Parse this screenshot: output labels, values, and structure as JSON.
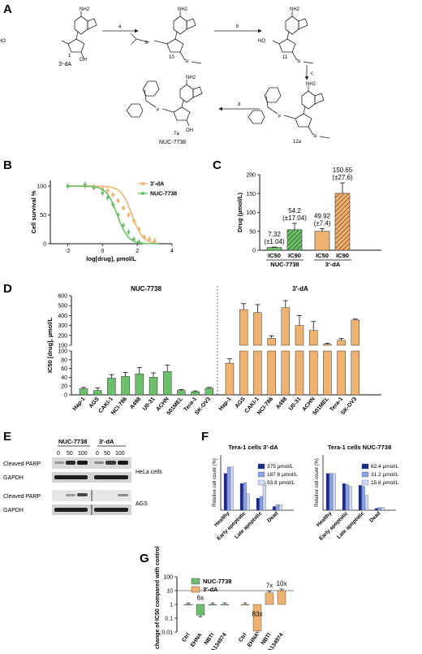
{
  "panels": {
    "a": {
      "letter": "A",
      "compounds": [
        {
          "id": "1",
          "name": "3′-dA"
        },
        {
          "id": "10",
          "name": ""
        },
        {
          "id": "11",
          "name": ""
        },
        {
          "id": "12a",
          "name": ""
        },
        {
          "id": "7a",
          "name": "NUC-7738"
        }
      ],
      "steps": [
        "a",
        "b",
        "c",
        "d"
      ],
      "atoms": {
        "nh2": "NH2",
        "n": "N",
        "ho": "HO",
        "oh": "OH",
        "o": "O",
        "si": "Si",
        "p": "P",
        "h": "H"
      }
    },
    "b": {
      "letter": "B"
    },
    "c": {
      "letter": "C"
    },
    "d": {
      "letter": "D"
    },
    "e": {
      "letter": "E"
    },
    "f": {
      "letter": "F"
    },
    "g": {
      "letter": "G"
    }
  },
  "chart_data": [
    {
      "panel": "B",
      "type": "line",
      "xlabel": "log[drug], µmol/L",
      "ylabel": "Cell survival %",
      "xlim": [
        -3,
        4
      ],
      "ylim": [
        0,
        110
      ],
      "xticks": [
        -2,
        0,
        2,
        4
      ],
      "yticks": [
        0,
        50,
        100
      ],
      "series": [
        {
          "name": "3′-dA",
          "color": "#f0b270",
          "ic50_log": 1.7,
          "x": [
            -2,
            -1,
            -0.5,
            0,
            0.3,
            0.6,
            0.9,
            1.2,
            1.5,
            1.8,
            2.1,
            2.4,
            2.7,
            3.0
          ],
          "y": [
            100,
            100,
            97,
            95,
            92,
            85,
            75,
            62,
            50,
            40,
            25,
            12,
            8,
            5
          ]
        },
        {
          "name": "NUC-7738",
          "color": "#6cc06c",
          "ic50_log": 0.85,
          "x": [
            -2,
            -1,
            -0.5,
            0,
            0.3,
            0.6,
            0.9,
            1.2,
            1.5,
            1.8,
            2.1
          ],
          "y": [
            100,
            103,
            98,
            88,
            80,
            68,
            50,
            32,
            20,
            8,
            3
          ]
        }
      ]
    },
    {
      "panel": "C",
      "type": "bar",
      "ylabel": "Drug (µmol/L)",
      "ylim": [
        0,
        200
      ],
      "yticks": [
        0,
        50,
        100,
        150,
        200
      ],
      "groups": [
        "NUC-7738",
        "3′-dA"
      ],
      "bars": [
        {
          "group": "NUC-7738",
          "label": "IC50",
          "value": 7.32,
          "sd": 1.04,
          "text": "7.32",
          "text2": "(±1.04)",
          "color": "#6cc06c",
          "hatched": false
        },
        {
          "group": "NUC-7738",
          "label": "IC90",
          "value": 54.2,
          "sd": 17.04,
          "text": "54.2",
          "text2": "(±17.04)",
          "color": "#6cc06c",
          "hatched": true
        },
        {
          "group": "3′-dA",
          "label": "IC50",
          "value": 49.92,
          "sd": 7.4,
          "text": "49.92",
          "text2": "(±7.4)",
          "color": "#f0b270",
          "hatched": false
        },
        {
          "group": "3′-dA",
          "label": "IC90",
          "value": 150.65,
          "sd": 27.6,
          "text": "150.65",
          "text2": "(±27.6)",
          "color": "#f0b270",
          "hatched": true
        }
      ]
    },
    {
      "panel": "D",
      "type": "bar",
      "ylabel": "IC50 [drug], µmol/L",
      "groups": [
        "NUC-7738",
        "3′-dA"
      ],
      "axis_lower": {
        "ylim": [
          0,
          100
        ],
        "yticks": [
          0,
          20,
          40,
          60,
          80,
          100
        ]
      },
      "axis_upper": {
        "ylim": [
          100,
          600
        ],
        "yticks": [
          100,
          200,
          300,
          400,
          500,
          600
        ]
      },
      "categories": [
        "Hap-1",
        "AGS",
        "CAKI-1",
        "NCI-786",
        "A498",
        "U0-31",
        "ACHN",
        "501MEL",
        "Tera-1",
        "SK-OV3"
      ],
      "series": [
        {
          "name": "NUC-7738",
          "color": "#6cc06c",
          "values": [
            14,
            10,
            38,
            42,
            48,
            40,
            53,
            10,
            7,
            15
          ],
          "sd": [
            3,
            6,
            8,
            9,
            14,
            10,
            15,
            2,
            2,
            2
          ]
        },
        {
          "name": "3′-dA",
          "color": "#f0b270",
          "values": [
            72,
            460,
            430,
            170,
            480,
            300,
            250,
            110,
            150,
            355
          ],
          "sd": [
            10,
            60,
            80,
            25,
            70,
            100,
            90,
            10,
            20,
            10
          ]
        }
      ]
    },
    {
      "panel": "F",
      "type": "bar",
      "title": "Tera-1 cells 3′-dA",
      "ylabel": "Relative cell count (%)",
      "categories": [
        "Healthy",
        "Early apoptotic",
        "Late apoptotic",
        "Dead"
      ],
      "ylim": [
        0,
        60
      ],
      "series": [
        {
          "name": "375 µmol/L",
          "color": "#1c2a8c",
          "values": [
            40,
            29,
            13,
            4
          ]
        },
        {
          "name": "187.6 µmol/L",
          "color": "#8da3e8",
          "values": [
            47,
            30,
            15,
            6
          ]
        },
        {
          "name": "93.8 µmol/L",
          "color": "#cfd8f5",
          "values": [
            47,
            18,
            30,
            6
          ]
        }
      ]
    },
    {
      "panel": "F",
      "type": "bar",
      "title": "Tera-1 cells NUC-7738",
      "ylabel": "Relative cell count (%)",
      "categories": [
        "Healthy",
        "Early apoptotic",
        "Late apoptotic",
        "Dead"
      ],
      "ylim": [
        0,
        60
      ],
      "series": [
        {
          "name": "62.4 µmol/L",
          "color": "#1c2a8c",
          "values": [
            40,
            29,
            27,
            2
          ]
        },
        {
          "name": "31.2 µmol/L",
          "color": "#8da3e8",
          "values": [
            40,
            28,
            26,
            3
          ]
        },
        {
          "name": "15.6 µmol/L",
          "color": "#cfd8f5",
          "values": [
            40,
            26,
            16,
            3
          ]
        }
      ]
    },
    {
      "panel": "G",
      "type": "bar",
      "ylabel": "Fold change of IC50 compared with control",
      "yscale": "log",
      "ylim": [
        0.01,
        100
      ],
      "yticks": [
        0.01,
        0.1,
        1,
        10,
        100
      ],
      "ytick_labels": [
        "0.01",
        "0.1",
        "1",
        "10",
        "100"
      ],
      "series": [
        {
          "name": "NUC-7738",
          "color": "#6cc06c",
          "categories": [
            "Ctrl",
            "EHNA",
            "NBTI",
            "A134974"
          ],
          "values": [
            1,
            0.17,
            1,
            1
          ],
          "annotations": [
            "",
            "6x",
            "",
            ""
          ]
        },
        {
          "name": "3′-dA",
          "color": "#f0b270",
          "categories": [
            "Ctrl",
            "EHNA",
            "NBTI",
            "A134974"
          ],
          "values": [
            1,
            0.012,
            7,
            10
          ],
          "annotations": [
            "",
            "83x",
            "7x",
            "10x"
          ]
        }
      ]
    }
  ],
  "blots": {
    "col_groups": [
      "NUC-7738",
      "3′-dA"
    ],
    "doses": [
      "0",
      "50",
      "100",
      "0",
      "50",
      "100"
    ],
    "rows": [
      {
        "label": "Cleaved PARP",
        "cell_line": ""
      },
      {
        "label": "GAPDH",
        "cell_line": "HeLa cells"
      },
      {
        "label": "Cleaved PARP",
        "cell_line": ""
      },
      {
        "label": "GAPDH",
        "cell_line": "AGS"
      }
    ]
  }
}
